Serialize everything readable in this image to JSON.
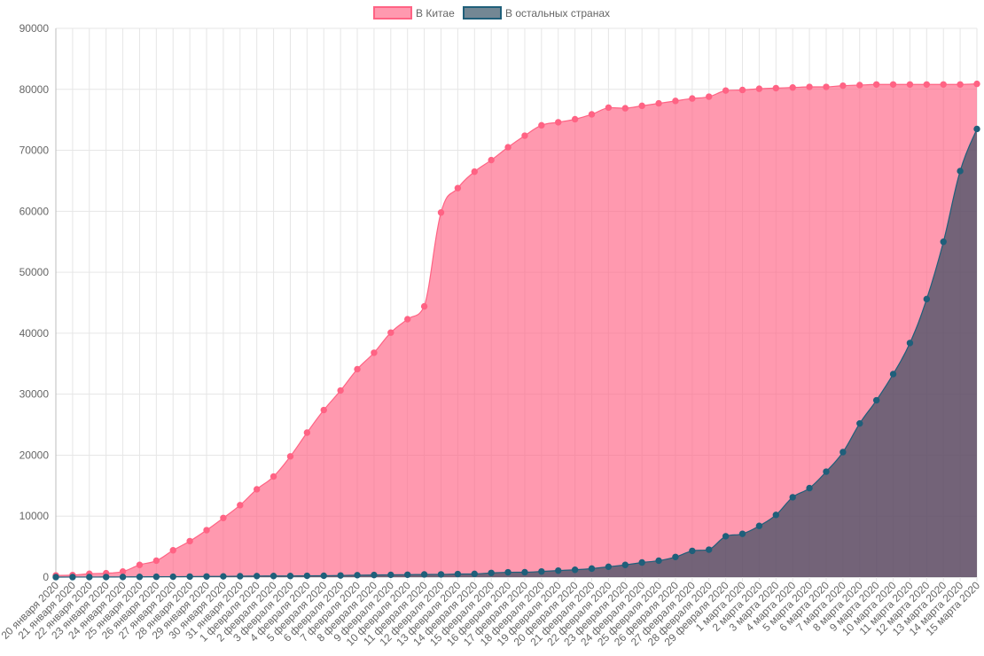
{
  "chart_data": {
    "type": "area",
    "ylim": [
      0,
      90000
    ],
    "y_ticks": [
      0,
      10000,
      20000,
      30000,
      40000,
      50000,
      60000,
      70000,
      80000,
      90000
    ],
    "grid": true,
    "legend_position": "top-center",
    "categories": [
      "20 января 2020",
      "21 января 2020",
      "22 января 2020",
      "23 января 2020",
      "24 января 2020",
      "25 января 2020",
      "26 января 2020",
      "27 января 2020",
      "28 января 2020",
      "29 января 2020",
      "30 января 2020",
      "31 января 2020",
      "1 февраля 2020",
      "2 февраля 2020",
      "3 февраля 2020",
      "4 февраля 2020",
      "5 февраля 2020",
      "6 февраля 2020",
      "7 февраля 2020",
      "8 февраля 2020",
      "9 февраля 2020",
      "10 февраля 2020",
      "11 февраля 2020",
      "12 февраля 2020",
      "13 февраля 2020",
      "14 февраля 2020",
      "15 февраля 2020",
      "16 февраля 2020",
      "17 февраля 2020",
      "18 февраля 2020",
      "19 февраля 2020",
      "20 февраля 2020",
      "21 февраля 2020",
      "22 февраля 2020",
      "23 февраля 2020",
      "24 февраля 2020",
      "25 февраля 2020",
      "26 февраля 2020",
      "27 февраля 2020",
      "28 февраля 2020",
      "29 февраля 2020",
      "1 марта 2020",
      "2 марта 2020",
      "3 марта 2020",
      "4 марта 2020",
      "5 марта 2020",
      "6 марта 2020",
      "7 марта 2020",
      "8 марта 2020",
      "9 марта 2020",
      "10 марта 2020",
      "11 марта 2020",
      "12 марта 2020",
      "13 марта 2020",
      "14 марта 2020",
      "15 марта 2020"
    ],
    "series": [
      {
        "name": "В Китае",
        "color": "#ff6384",
        "fill": "rgba(255, 99, 132, 0.65)",
        "values": [
          278,
          326,
          547,
          639,
          916,
          2000,
          2700,
          4400,
          5900,
          7700,
          9700,
          11800,
          14400,
          16500,
          19800,
          23700,
          27400,
          30600,
          34100,
          36800,
          40100,
          42300,
          44400,
          59800,
          63800,
          66500,
          68400,
          70500,
          72400,
          74100,
          74600,
          75100,
          75900,
          77000,
          76900,
          77300,
          77700,
          78100,
          78500,
          78800,
          79800,
          79900,
          80100,
          80200,
          80300,
          80400,
          80400,
          80600,
          80700,
          80800,
          80800,
          80800,
          80800,
          80800,
          80800,
          80900
        ]
      },
      {
        "name": "В остальных странах",
        "color": "#1f5f7a",
        "fill": "rgba(40, 70, 90, 0.65)",
        "values": [
          4,
          6,
          8,
          14,
          25,
          40,
          57,
          64,
          87,
          105,
          118,
          153,
          173,
          183,
          188,
          212,
          227,
          265,
          317,
          344,
          373,
          393,
          441,
          447,
          505,
          526,
          683,
          794,
          804,
          924,
          1070,
          1200,
          1400,
          1700,
          2000,
          2400,
          2700,
          3300,
          4300,
          4500,
          6700,
          7100,
          8400,
          10200,
          13100,
          14600,
          17300,
          20500,
          25200,
          29000,
          33300,
          38400,
          45600,
          55000,
          66600,
          73500
        ]
      }
    ]
  }
}
